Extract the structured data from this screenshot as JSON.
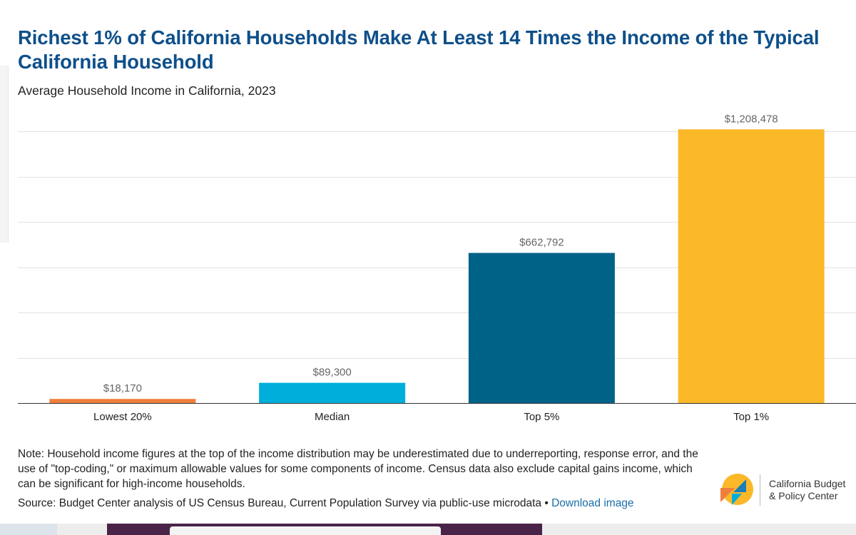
{
  "header": {
    "title": "Richest 1% of California Households Make At Least 14 Times the Income of the Typical California Household",
    "subtitle": "Average Household Income in California, 2023"
  },
  "chart_data": {
    "type": "bar",
    "title": "Richest 1% of California Households Make At Least 14 Times the Income of the Typical California Household",
    "subtitle": "Average Household Income in California, 2023",
    "categories": [
      "Lowest 20%",
      "Median",
      "Top 5%",
      "Top 1%"
    ],
    "values": [
      18170,
      89300,
      662792,
      1208478
    ],
    "value_labels": [
      "$18,170",
      "$89,300",
      "$662,792",
      "$1,208,478"
    ],
    "colors": [
      "#f07f3c",
      "#00aedb",
      "#006287",
      "#fbb829"
    ],
    "xlabel": "",
    "ylabel": "",
    "ylim": [
      0,
      1200000
    ],
    "grid_step": 200000,
    "grid": true,
    "legend": "none"
  },
  "footer": {
    "note": "Note: Household income figures at the top of the income distribution may be underestimated due to underreporting, response error, and the use of \"top-coding,\" or maximum allowable values for some components of income. Census data also exclude capital gains income, which can be significant for high-income households.",
    "source_prefix": "Source: Budget Center analysis of US Census Bureau, Current Population Survey via public-use microdata • ",
    "download_label": "Download image"
  },
  "logo": {
    "line1": "California Budget",
    "line2": "& Policy Center",
    "colors": {
      "yellow": "#fbb829",
      "orange": "#f07f3c",
      "blue": "#1a7fb8",
      "teal": "#00aedb"
    }
  },
  "colors": {
    "title": "#0e4f8a",
    "link": "#1a6fa8"
  }
}
